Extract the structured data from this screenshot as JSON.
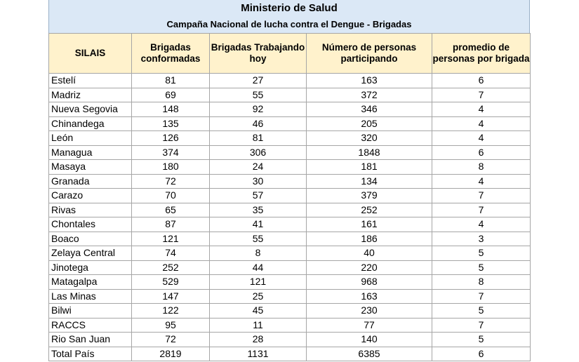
{
  "title": "Ministerio de Salud",
  "subtitle": "Campaña Nacional de lucha contra el Dengue - Brigadas",
  "headers": [
    "SILAIS",
    "Brigadas conformadas",
    "Brigadas Trabajando hoy",
    "Número de personas participando",
    "promedio de personas por brigada"
  ],
  "rows": [
    [
      "Estelí",
      "81",
      "27",
      "163",
      "6"
    ],
    [
      "Madriz",
      "69",
      "55",
      "372",
      "7"
    ],
    [
      "Nueva Segovia",
      "148",
      "92",
      "346",
      "4"
    ],
    [
      "Chinandega",
      "135",
      "46",
      "205",
      "4"
    ],
    [
      "León",
      "126",
      "81",
      "320",
      "4"
    ],
    [
      "Managua",
      "374",
      "306",
      "1848",
      "6"
    ],
    [
      "Masaya",
      "180",
      "24",
      "181",
      "8"
    ],
    [
      "Granada",
      "72",
      "30",
      "134",
      "4"
    ],
    [
      "Carazo",
      "70",
      "57",
      "379",
      "7"
    ],
    [
      "Rivas",
      "65",
      "35",
      "252",
      "7"
    ],
    [
      "Chontales",
      "87",
      "41",
      "161",
      "4"
    ],
    [
      "Boaco",
      "121",
      "55",
      "186",
      "3"
    ],
    [
      "Zelaya Central",
      "74",
      "8",
      "40",
      "5"
    ],
    [
      "Jinotega",
      "252",
      "44",
      "220",
      "5"
    ],
    [
      "Matagalpa",
      "529",
      "121",
      "968",
      "8"
    ],
    [
      "Las Minas",
      "147",
      "25",
      "163",
      "7"
    ],
    [
      "Bilwi",
      "122",
      "45",
      "230",
      "5"
    ],
    [
      "RACCS",
      "95",
      "11",
      "77",
      "7"
    ],
    [
      "Rio San Juan",
      "72",
      "28",
      "140",
      "5"
    ],
    [
      "Total País",
      "2819",
      "1131",
      "6385",
      "6"
    ]
  ]
}
